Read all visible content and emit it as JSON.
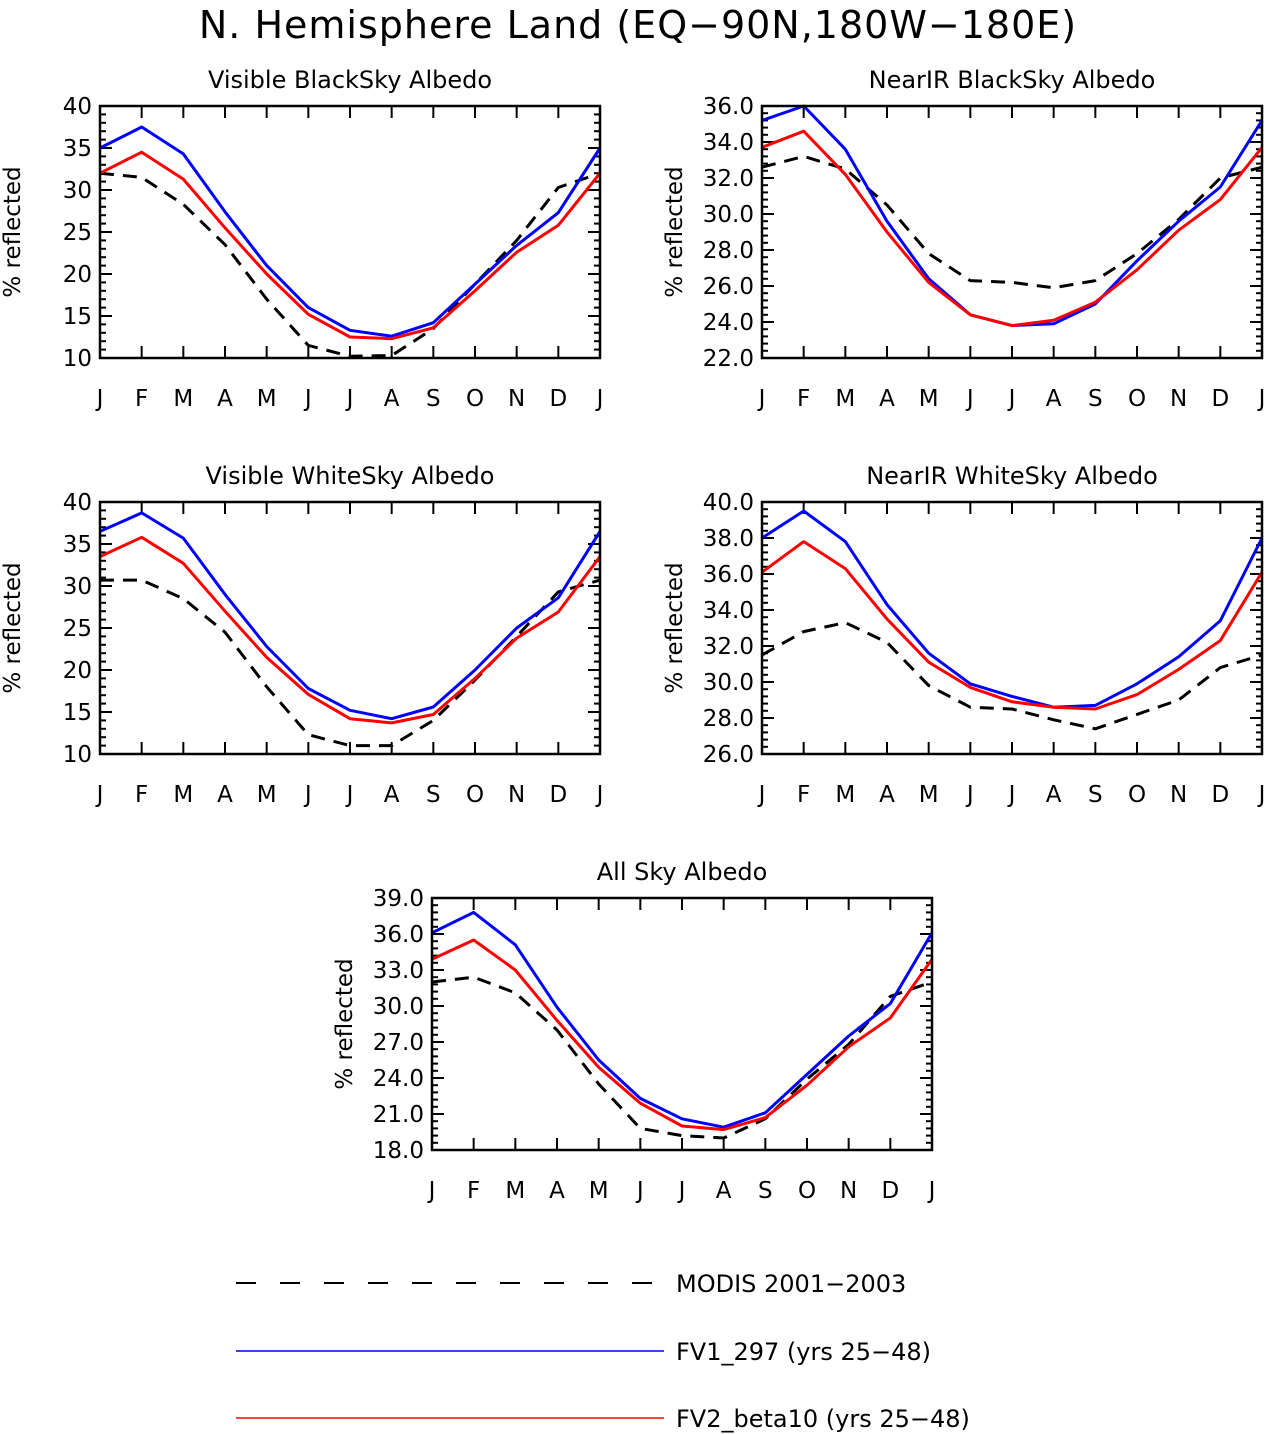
{
  "figure_title": "N. Hemisphere Land (EQ−90N,180W−180E)",
  "colors": {
    "modis": "#000000",
    "fv1": "#0000ff",
    "fv2": "#ff0000"
  },
  "legend": [
    {
      "label": "MODIS 2001−2003",
      "color": "#000000",
      "style": "dashed"
    },
    {
      "label": "FV1_297 (yrs 25−48)",
      "color": "#0000ff",
      "style": "solid"
    },
    {
      "label": "FV2_beta10 (yrs 25−48)",
      "color": "#ff0000",
      "style": "solid"
    }
  ],
  "chart_data": [
    {
      "type": "line",
      "title": "Visible BlackSky Albedo",
      "ylabel": "% reflected",
      "categories": [
        "J",
        "F",
        "M",
        "A",
        "M",
        "J",
        "J",
        "A",
        "S",
        "O",
        "N",
        "D",
        "J"
      ],
      "ylim": [
        10,
        40
      ],
      "yticks": [
        "10",
        "15",
        "20",
        "25",
        "30",
        "35",
        "40"
      ],
      "series": [
        {
          "name": "MODIS 2001−2003",
          "values": [
            32.0,
            31.5,
            28.3,
            23.5,
            17.0,
            11.5,
            10.2,
            10.3,
            13.5,
            18.8,
            24.0,
            30.3,
            32.0
          ]
        },
        {
          "name": "FV1_297 (yrs 25−48)",
          "values": [
            35.0,
            37.5,
            34.3,
            27.4,
            21.0,
            16.0,
            13.3,
            12.6,
            14.2,
            18.8,
            23.4,
            27.3,
            35.0
          ]
        },
        {
          "name": "FV2_beta10 (yrs 25−48)",
          "values": [
            32.0,
            34.5,
            31.3,
            25.5,
            20.0,
            15.2,
            12.5,
            12.3,
            13.6,
            18.0,
            22.6,
            25.8,
            32.0
          ]
        }
      ]
    },
    {
      "type": "line",
      "title": "NearIR BlackSky Albedo",
      "ylabel": "% reflected",
      "categories": [
        "J",
        "F",
        "M",
        "A",
        "M",
        "J",
        "J",
        "A",
        "S",
        "O",
        "N",
        "D",
        "J"
      ],
      "ylim": [
        22,
        36
      ],
      "yticks": [
        "22.0",
        "24.0",
        "26.0",
        "28.0",
        "30.0",
        "32.0",
        "34.0",
        "36.0"
      ],
      "series": [
        {
          "name": "MODIS 2001−2003",
          "values": [
            32.6,
            33.2,
            32.5,
            30.5,
            27.8,
            26.3,
            26.2,
            25.9,
            26.3,
            27.8,
            29.7,
            32.0,
            32.6
          ]
        },
        {
          "name": "FV1_297 (yrs 25−48)",
          "values": [
            35.2,
            36.0,
            33.6,
            29.6,
            26.4,
            24.4,
            23.8,
            23.9,
            25.0,
            27.4,
            29.6,
            31.5,
            35.2
          ]
        },
        {
          "name": "FV2_beta10 (yrs 25−48)",
          "values": [
            33.7,
            34.6,
            32.2,
            29.0,
            26.2,
            24.4,
            23.8,
            24.1,
            25.1,
            26.9,
            29.1,
            30.8,
            33.7
          ]
        }
      ]
    },
    {
      "type": "line",
      "title": "Visible WhiteSky Albedo",
      "ylabel": "% reflected",
      "categories": [
        "J",
        "F",
        "M",
        "A",
        "M",
        "J",
        "J",
        "A",
        "S",
        "O",
        "N",
        "D",
        "J"
      ],
      "ylim": [
        10,
        40
      ],
      "yticks": [
        "10",
        "15",
        "20",
        "25",
        "30",
        "35",
        "40"
      ],
      "series": [
        {
          "name": "MODIS 2001−2003",
          "values": [
            30.7,
            30.7,
            28.5,
            24.5,
            18.0,
            12.3,
            11.0,
            11.0,
            14.0,
            18.8,
            24.0,
            29.3,
            30.7
          ]
        },
        {
          "name": "FV1_297 (yrs 25−48)",
          "values": [
            36.5,
            38.7,
            35.7,
            29.0,
            22.8,
            17.8,
            15.2,
            14.2,
            15.6,
            20.0,
            25.0,
            28.6,
            36.5
          ]
        },
        {
          "name": "FV2_beta10 (yrs 25−48)",
          "values": [
            33.5,
            35.8,
            32.7,
            27.0,
            21.5,
            17.1,
            14.2,
            13.7,
            14.7,
            19.0,
            23.8,
            26.9,
            33.5
          ]
        }
      ]
    },
    {
      "type": "line",
      "title": "NearIR WhiteSky Albedo",
      "ylabel": "% reflected",
      "categories": [
        "J",
        "F",
        "M",
        "A",
        "M",
        "J",
        "J",
        "A",
        "S",
        "O",
        "N",
        "D",
        "J"
      ],
      "ylim": [
        26,
        40
      ],
      "yticks": [
        "26.0",
        "28.0",
        "30.0",
        "32.0",
        "34.0",
        "36.0",
        "38.0",
        "40.0"
      ],
      "series": [
        {
          "name": "MODIS 2001−2003",
          "values": [
            31.5,
            32.8,
            33.3,
            32.2,
            29.8,
            28.6,
            28.5,
            27.9,
            27.4,
            28.2,
            29.0,
            30.8,
            31.5
          ]
        },
        {
          "name": "FV1_297 (yrs 25−48)",
          "values": [
            38.0,
            39.5,
            37.8,
            34.3,
            31.6,
            29.9,
            29.2,
            28.6,
            28.7,
            29.9,
            31.4,
            33.4,
            38.0
          ]
        },
        {
          "name": "FV2_beta10 (yrs 25−48)",
          "values": [
            36.1,
            37.8,
            36.3,
            33.5,
            31.1,
            29.7,
            28.9,
            28.6,
            28.5,
            29.3,
            30.7,
            32.3,
            36.1
          ]
        }
      ]
    },
    {
      "type": "line",
      "title": "All Sky Albedo",
      "ylabel": "% reflected",
      "categories": [
        "J",
        "F",
        "M",
        "A",
        "M",
        "J",
        "J",
        "A",
        "S",
        "O",
        "N",
        "D",
        "J"
      ],
      "ylim": [
        18,
        39
      ],
      "yticks": [
        "18.0",
        "21.0",
        "24.0",
        "27.0",
        "30.0",
        "33.0",
        "36.0",
        "39.0"
      ],
      "series": [
        {
          "name": "MODIS 2001−2003",
          "values": [
            32.0,
            32.4,
            31.1,
            28.0,
            23.5,
            19.8,
            19.2,
            19.0,
            20.6,
            23.9,
            26.8,
            30.8,
            32.0
          ]
        },
        {
          "name": "FV1_297 (yrs 25−48)",
          "values": [
            36.1,
            37.8,
            35.1,
            29.9,
            25.5,
            22.3,
            20.6,
            19.9,
            21.1,
            24.3,
            27.5,
            30.2,
            36.1
          ]
        },
        {
          "name": "FV2_beta10 (yrs 25−48)",
          "values": [
            33.9,
            35.5,
            33.0,
            28.8,
            24.9,
            21.9,
            20.0,
            19.7,
            20.7,
            23.4,
            26.6,
            29.0,
            33.9
          ]
        }
      ]
    }
  ]
}
